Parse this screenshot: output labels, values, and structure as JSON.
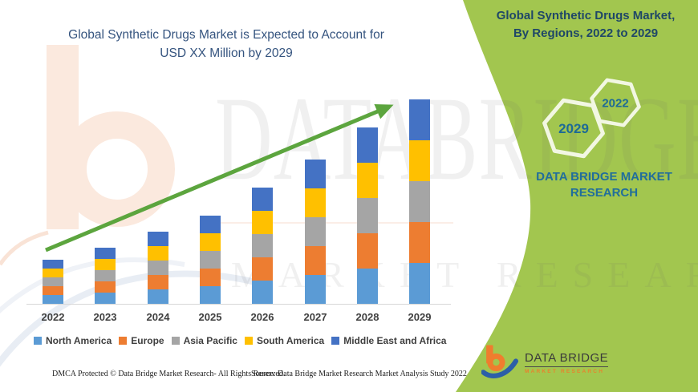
{
  "left_panel": {
    "title_line1": "Global Synthetic Drugs Market is Expected to Account for",
    "title_line2": "USD XX Million by 2029",
    "footer_left": "DMCA Protected © Data Bridge Market Research- All Rights Reserved.",
    "footer_right": "Source: Data Bridge Market Research Market Analysis Study 2022"
  },
  "chart_data": {
    "type": "bar",
    "stacked": true,
    "title": "Global Synthetic Drugs Market, By Regions, 2022 to 2029",
    "categories": [
      "2022",
      "2023",
      "2024",
      "2025",
      "2026",
      "2027",
      "2028",
      "2029"
    ],
    "series": [
      {
        "name": "North America",
        "color": "#5B9BD5",
        "values": [
          11,
          14,
          18,
          22,
          29,
          36,
          44,
          51
        ]
      },
      {
        "name": "Europe",
        "color": "#ED7D31",
        "values": [
          11,
          14,
          18,
          22,
          29,
          36,
          44,
          51
        ]
      },
      {
        "name": "Asia Pacific",
        "color": "#A5A5A5",
        "values": [
          11,
          14,
          18,
          22,
          29,
          36,
          44,
          51
        ]
      },
      {
        "name": "South America",
        "color": "#FFC000",
        "values": [
          11,
          14,
          18,
          22,
          29,
          36,
          44,
          51
        ]
      },
      {
        "name": "Middle East and Africa",
        "color": "#4472C4",
        "values": [
          11,
          14,
          18,
          22,
          29,
          36,
          44,
          51
        ]
      }
    ],
    "totals": [
      55,
      70,
      90,
      110,
      145,
      180,
      220,
      255
    ],
    "units": "relative index; actual values not disclosed (shown as USD XX Million)",
    "xlabel": "",
    "ylabel": "",
    "grid": false,
    "legend_position": "bottom",
    "trend_arrow": {
      "from_category": "2022",
      "to_category": "2029",
      "color": "#5CA53E"
    }
  },
  "right_panel": {
    "background_color": "#A2C64F",
    "title_line1": "Global Synthetic Drugs Market,",
    "title_line2": "By Regions, 2022 to 2029",
    "hexagon_large_label": "2029",
    "hexagon_small_label": "2022",
    "brand_line1": "DATA BRIDGE MARKET",
    "brand_line2": "RESEARCH",
    "logo_title": "DATA BRIDGE",
    "logo_subtitle": "MARKET RESEARCH"
  },
  "watermark": {
    "line1": "DATABRIDGE",
    "line2": "MARKET RESEARCH"
  }
}
